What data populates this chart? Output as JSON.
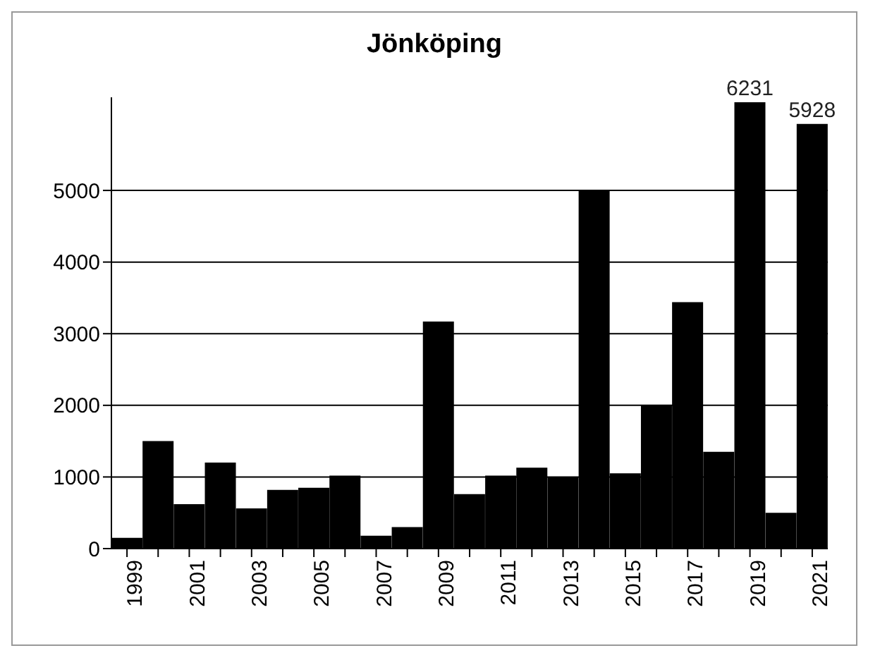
{
  "chart_data": {
    "type": "bar",
    "title": "Jönköping",
    "categories": [
      "1999",
      null,
      "2001",
      null,
      "2003",
      null,
      "2005",
      null,
      "2007",
      null,
      "2009",
      null,
      "2011",
      null,
      "2013",
      null,
      "2015",
      null,
      "2017",
      null,
      "2019",
      null,
      "2021"
    ],
    "values": [
      150,
      1500,
      620,
      1200,
      560,
      820,
      850,
      1020,
      180,
      300,
      3170,
      760,
      1020,
      1130,
      1000,
      5000,
      1050,
      2000,
      3440,
      1350,
      6231,
      500,
      5928
    ],
    "value_labels": [
      null,
      null,
      null,
      null,
      null,
      null,
      null,
      null,
      null,
      null,
      null,
      null,
      null,
      null,
      null,
      null,
      null,
      null,
      null,
      null,
      "6231",
      null,
      "5928"
    ],
    "color": "#000000",
    "ylim": [
      0,
      6300
    ],
    "yticks": [
      0,
      1000,
      2000,
      3000,
      4000,
      5000
    ],
    "grid": "y"
  }
}
